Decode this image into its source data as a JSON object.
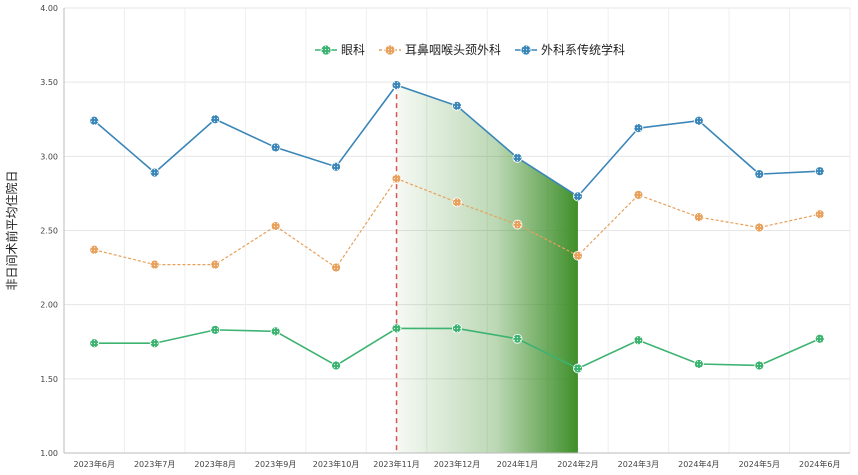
{
  "chart_data": {
    "type": "line",
    "ylabel": "非日间术前平均住院日",
    "ylim": [
      1.0,
      4.0
    ],
    "yticks": [
      "1.00",
      "1.50",
      "2.00",
      "2.50",
      "3.00",
      "3.50",
      "4.00"
    ],
    "x": [
      "2023年6月",
      "2023年7月",
      "2023年8月",
      "2023年9月",
      "2023年10月",
      "2023年11月",
      "2023年12月",
      "2024年1月",
      "2024年2月",
      "2024年3月",
      "2024年4月",
      "2024年5月",
      "2024年6月"
    ],
    "series": [
      {
        "name": "眼科",
        "color": "#3cb371",
        "dashed": false,
        "values": [
          1.74,
          1.74,
          1.83,
          1.82,
          1.59,
          1.84,
          1.84,
          1.77,
          1.57,
          1.76,
          1.6,
          1.59,
          1.77
        ]
      },
      {
        "name": "耳鼻咽喉头颈外科",
        "color": "#e8a05a",
        "dashed": true,
        "values": [
          2.37,
          2.27,
          2.27,
          2.53,
          2.25,
          2.85,
          2.69,
          2.54,
          2.33,
          2.74,
          2.59,
          2.52,
          2.61
        ]
      },
      {
        "name": "外科系传统学科",
        "color": "#3a86b8",
        "dashed": false,
        "values": [
          3.24,
          2.89,
          3.25,
          3.06,
          2.93,
          3.48,
          3.34,
          2.99,
          2.73,
          3.19,
          3.24,
          2.88,
          2.9
        ]
      }
    ],
    "markline_category": "2023年11月",
    "shaded_range": [
      "2023年11月",
      "2024年2月"
    ],
    "shade_color": "#3f8f2a",
    "markline_color": "#d9534f",
    "grid": true,
    "legend_position": "top-center"
  }
}
